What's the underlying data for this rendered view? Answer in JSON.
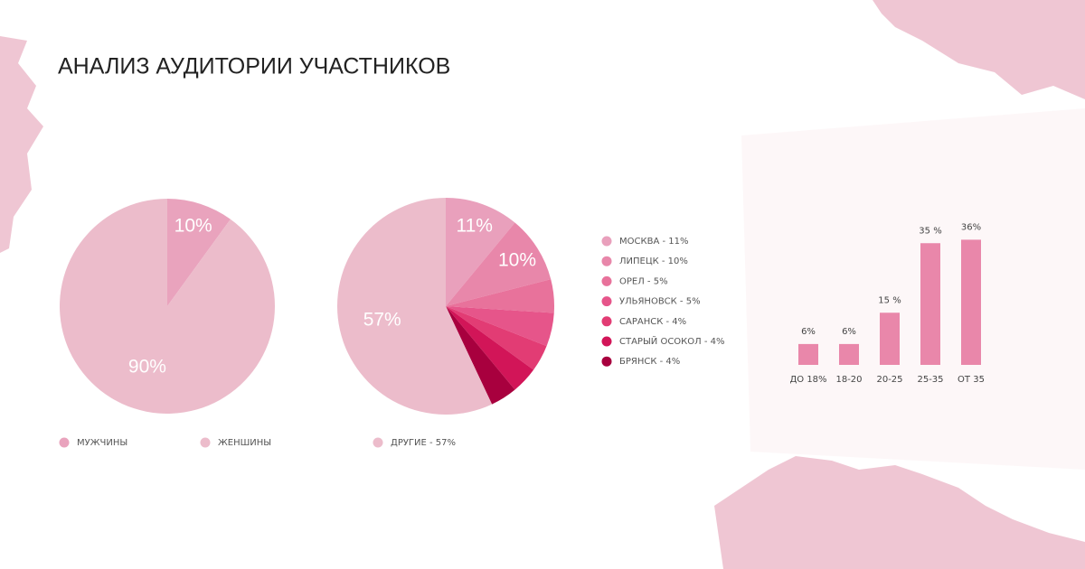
{
  "title": "АНАЛИЗ АУДИТОРИИ УЧАСТНИКОВ",
  "chart_data": [
    {
      "type": "pie",
      "categories": [
        "МУЖЧИНЫ",
        "ЖЕНШИНЫ"
      ],
      "values": [
        10,
        90
      ],
      "value_labels": [
        "10%",
        "90%"
      ],
      "colors": [
        "#e9a3bd",
        "#ecbccb"
      ]
    },
    {
      "type": "pie",
      "categories": [
        "МОСКВА - 11%",
        "ЛИПЕЦК - 10%",
        "ОРЕЛ - 5%",
        "УЛЬЯНОВСК - 5%",
        "САРАНСК - 4%",
        "СТАРЫЙ ОСОКОЛ - 4%",
        "БРЯНСК - 4%",
        "ДРУГИЕ - 57%"
      ],
      "values": [
        11,
        10,
        5,
        5,
        4,
        4,
        4,
        57
      ],
      "value_labels": [
        "11%",
        "10%",
        null,
        null,
        null,
        null,
        null,
        "57%"
      ],
      "colors": [
        "#e9a0bc",
        "#e887aa",
        "#e8729b",
        "#e6558a",
        "#e23c74",
        "#d21558",
        "#a8003e",
        "#ecbccb"
      ]
    },
    {
      "type": "bar",
      "categories": [
        "ДО 18%",
        "18-20",
        "20-25",
        "25-35",
        "ОТ 35"
      ],
      "values": [
        6,
        6,
        15,
        35,
        36
      ],
      "value_labels": [
        "6%",
        "6%",
        "15 %",
        "35 %",
        "36%"
      ],
      "color": "#e987aa"
    }
  ]
}
